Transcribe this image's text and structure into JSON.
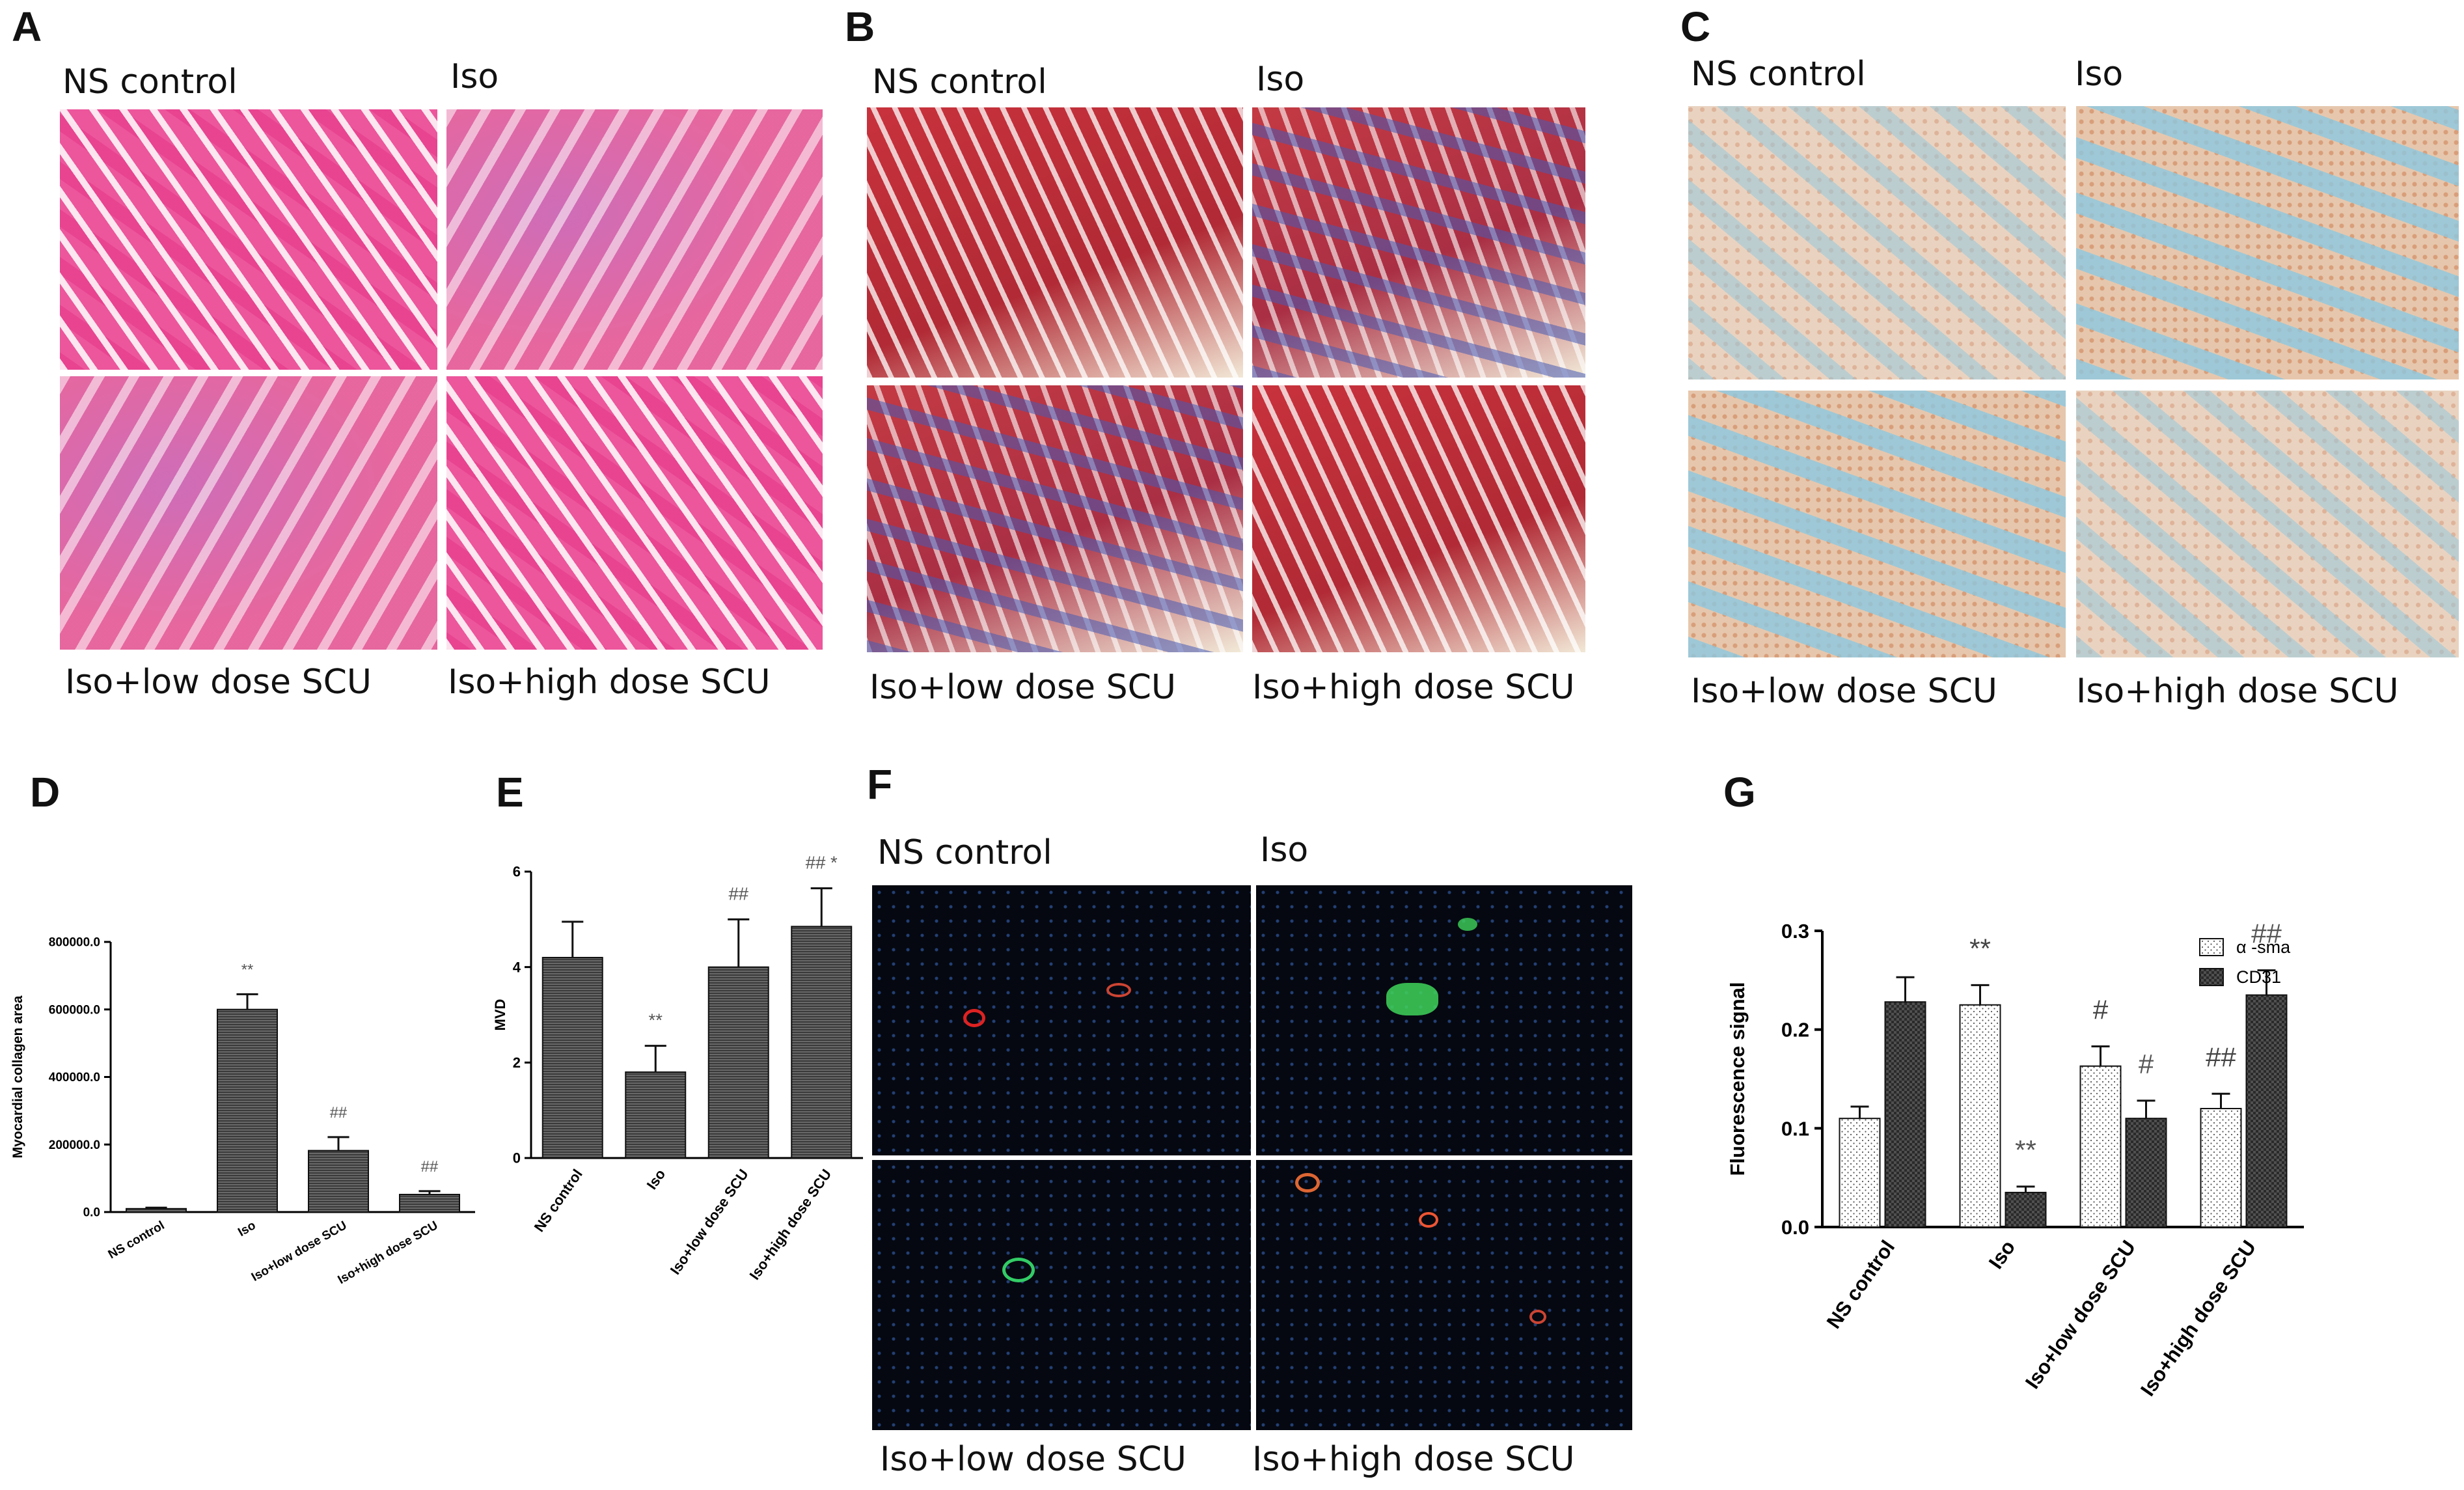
{
  "panels": {
    "A": {
      "letter": "A",
      "tl": "NS control",
      "tr": "Iso",
      "bl": "Iso+low dose SCU",
      "br": "Iso+high dose SCU"
    },
    "B": {
      "letter": "B",
      "tl": "NS control",
      "tr": "Iso",
      "bl": "Iso+low dose SCU",
      "br": "Iso+high dose SCU"
    },
    "C": {
      "letter": "C",
      "tl": "NS control",
      "tr": "Iso",
      "bl": "Iso+low dose SCU",
      "br": "Iso+high dose SCU"
    },
    "D": {
      "letter": "D"
    },
    "E": {
      "letter": "E"
    },
    "F": {
      "letter": "F",
      "tl": "NS control",
      "tr": "Iso",
      "bl": "Iso+low dose SCU",
      "br": "Iso+high dose SCU"
    },
    "G": {
      "letter": "G"
    }
  },
  "chart_data": [
    {
      "panel": "D",
      "type": "bar",
      "ylabel": "Myocardial collagen area",
      "categories": [
        "NS control",
        "Iso",
        "Iso+low dose SCU",
        "Iso+high dose SCU"
      ],
      "values": [
        10000,
        600000,
        182000,
        52000
      ],
      "errors": [
        3000,
        45000,
        40000,
        10000
      ],
      "annotations": [
        "",
        "**",
        "##",
        "##"
      ],
      "ylim": [
        0,
        800000
      ],
      "yticks": [
        "0.0",
        "200000.0",
        "400000.0",
        "600000.0",
        "800000.0"
      ],
      "ytick_values": [
        0,
        200000,
        400000,
        600000,
        800000
      ],
      "grid": false
    },
    {
      "panel": "E",
      "type": "bar",
      "ylabel": "MVD",
      "categories": [
        "NS control",
        "Iso",
        "Iso+low dose SCU",
        "Iso+high dose SCU"
      ],
      "values": [
        4.2,
        1.8,
        4.0,
        4.85
      ],
      "errors": [
        0.75,
        0.55,
        1.0,
        0.8
      ],
      "annotations": [
        "",
        "**",
        "##",
        "## *"
      ],
      "ylim": [
        0,
        6
      ],
      "yticks": [
        "0",
        "2",
        "4",
        "6"
      ],
      "ytick_values": [
        0,
        2,
        4,
        6
      ],
      "grid": false
    },
    {
      "panel": "G",
      "type": "bar",
      "ylabel": "Fluorescence signal",
      "categories": [
        "NS control",
        "Iso",
        "Iso+low dose SCU",
        "Iso+high dose SCU"
      ],
      "series": [
        {
          "name": "α -sma",
          "values": [
            0.11,
            0.225,
            0.163,
            0.12
          ],
          "errors": [
            0.012,
            0.02,
            0.02,
            0.015
          ],
          "annotations": [
            "",
            "**",
            "#",
            "##"
          ]
        },
        {
          "name": "CD31",
          "values": [
            0.228,
            0.035,
            0.11,
            0.235
          ],
          "errors": [
            0.025,
            0.006,
            0.018,
            0.025
          ],
          "annotations": [
            "",
            "**",
            "#",
            "##"
          ]
        }
      ],
      "ylim": [
        0,
        0.3
      ],
      "yticks": [
        "0.0",
        "0.1",
        "0.2",
        "0.3"
      ],
      "ytick_values": [
        0,
        0.1,
        0.2,
        0.3
      ],
      "legend": "top-right",
      "grid": false
    }
  ]
}
